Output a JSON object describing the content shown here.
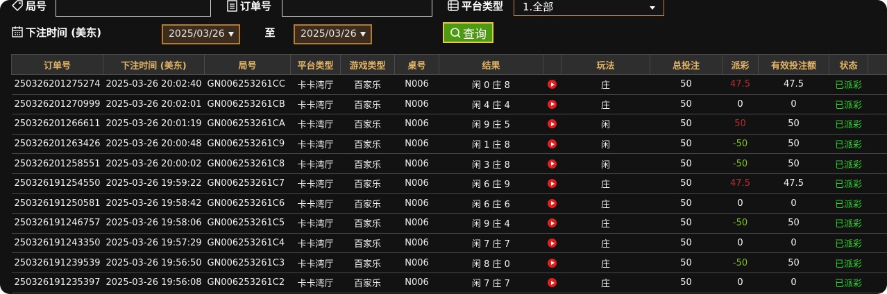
{
  "filters": {
    "round_label": "局号",
    "order_label": "订单号",
    "platform_label": "平台类型",
    "platform_value": "1.全部",
    "time_label": "下注时间 (美东)",
    "date_from": "2025/03/26",
    "to_label": "至",
    "date_to": "2025/03/26",
    "search_button": "查询"
  },
  "table": {
    "headers": [
      "订单号",
      "下注时间 (美东)",
      "局号",
      "平台类型",
      "游戏类型",
      "桌号",
      "结果",
      "玩法",
      "总投注",
      "派彩",
      "有效投注额",
      "状态"
    ],
    "payout_colors": {
      "win": "#b5302e",
      "lose": "#7ec41a",
      "even": "#ffffff"
    },
    "rows": [
      {
        "cells": [
          "250326201275274",
          "2025-03-26 20:02:40",
          "GN006253261CC",
          "卡卡湾厅",
          "百家乐",
          "N006",
          "闲 0 庄 8",
          "庄",
          50,
          47.5,
          47.5,
          "已派彩"
        ],
        "payout": "win"
      },
      {
        "cells": [
          "250326201270999",
          "2025-03-26 20:02:01",
          "GN006253261CB",
          "卡卡湾厅",
          "百家乐",
          "N006",
          "闲 4 庄 4",
          "庄",
          50,
          0,
          0,
          "已派彩"
        ],
        "payout": "even"
      },
      {
        "cells": [
          "250326201266611",
          "2025-03-26 20:01:19",
          "GN006253261CA",
          "卡卡湾厅",
          "百家乐",
          "N006",
          "闲 9 庄 5",
          "闲",
          50,
          50,
          50,
          "已派彩"
        ],
        "payout": "win"
      },
      {
        "cells": [
          "250326201263426",
          "2025-03-26 20:00:48",
          "GN006253261C9",
          "卡卡湾厅",
          "百家乐",
          "N006",
          "闲 1 庄 8",
          "闲",
          50,
          -50,
          50,
          "已派彩"
        ],
        "payout": "lose"
      },
      {
        "cells": [
          "250326201258551",
          "2025-03-26 20:00:02",
          "GN006253261C8",
          "卡卡湾厅",
          "百家乐",
          "N006",
          "闲 3 庄 8",
          "闲",
          50,
          -50,
          50,
          "已派彩"
        ],
        "payout": "lose"
      },
      {
        "cells": [
          "250326191254550",
          "2025-03-26 19:59:22",
          "GN006253261C7",
          "卡卡湾厅",
          "百家乐",
          "N006",
          "闲 6 庄 9",
          "庄",
          50,
          47.5,
          47.5,
          "已派彩"
        ],
        "payout": "win"
      },
      {
        "cells": [
          "250326191250581",
          "2025-03-26 19:58:42",
          "GN006253261C6",
          "卡卡湾厅",
          "百家乐",
          "N006",
          "闲 6 庄 6",
          "庄",
          50,
          0,
          0,
          "已派彩"
        ],
        "payout": "even"
      },
      {
        "cells": [
          "250326191246757",
          "2025-03-26 19:58:06",
          "GN006253261C5",
          "卡卡湾厅",
          "百家乐",
          "N006",
          "闲 9 庄 4",
          "庄",
          50,
          -50,
          50,
          "已派彩"
        ],
        "payout": "lose"
      },
      {
        "cells": [
          "250326191243350",
          "2025-03-26 19:57:29",
          "GN006253261C4",
          "卡卡湾厅",
          "百家乐",
          "N006",
          "闲 7 庄 7",
          "庄",
          50,
          0,
          0,
          "已派彩"
        ],
        "payout": "even"
      },
      {
        "cells": [
          "250326191239539",
          "2025-03-26 19:56:50",
          "GN006253261C3",
          "卡卡湾厅",
          "百家乐",
          "N006",
          "闲 8 庄 0",
          "庄",
          50,
          -50,
          50,
          "已派彩"
        ],
        "payout": "lose"
      },
      {
        "cells": [
          "250326191235397",
          "2025-03-26 19:56:08",
          "GN006253261C2",
          "卡卡湾厅",
          "百家乐",
          "N006",
          "闲 7 庄 7",
          "庄",
          50,
          0,
          0,
          "已派彩"
        ],
        "payout": "even"
      }
    ]
  }
}
